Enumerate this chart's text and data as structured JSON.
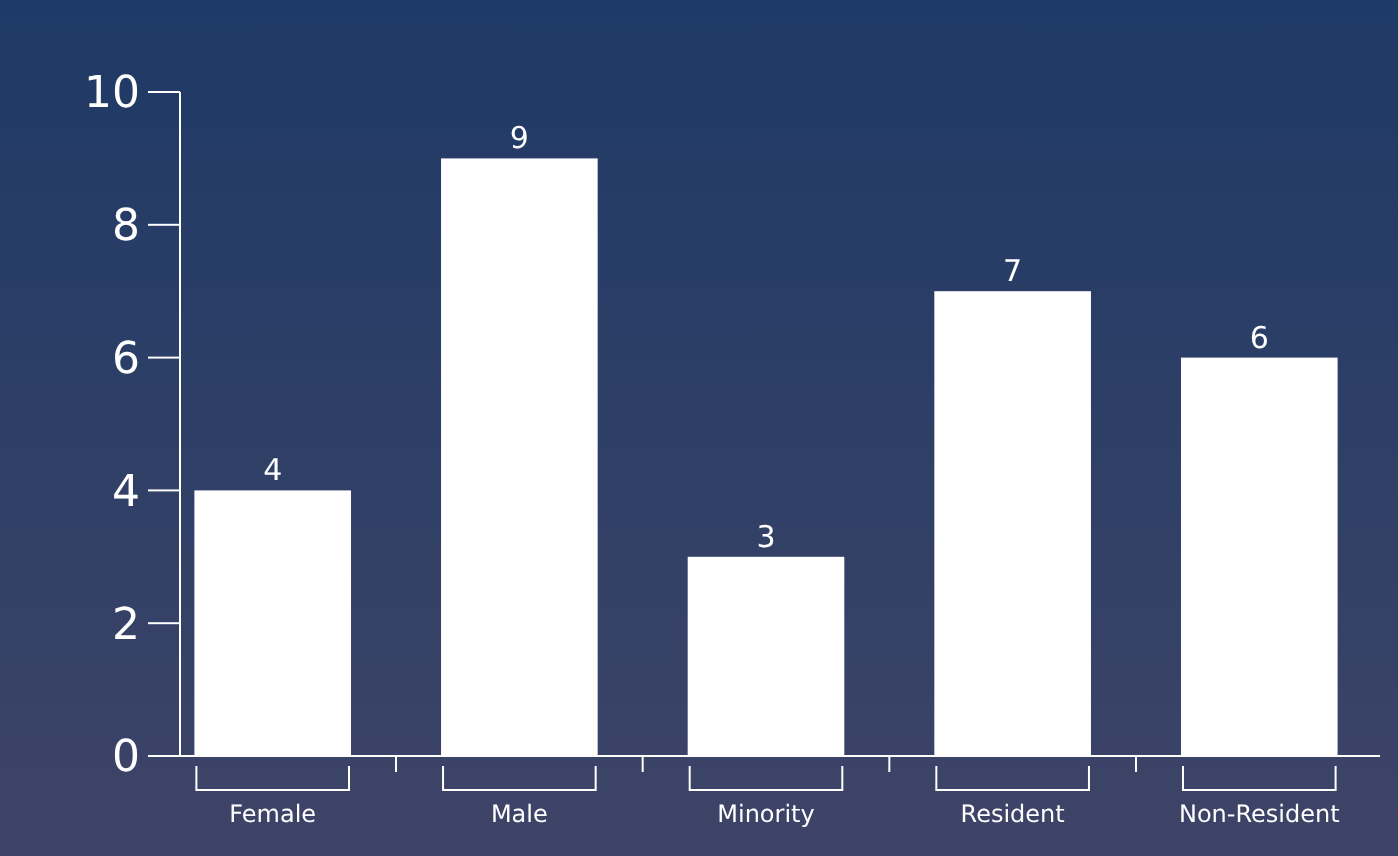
{
  "chart_data": {
    "type": "bar",
    "categories": [
      "Female",
      "Male",
      "Minority",
      "Resident",
      "Non-Resident"
    ],
    "values": [
      4,
      9,
      3,
      7,
      6
    ],
    "color": "#ffffff",
    "ylim": [
      0,
      10
    ],
    "yticks": [
      0,
      2,
      4,
      6,
      8,
      10
    ],
    "data_labels": true
  }
}
